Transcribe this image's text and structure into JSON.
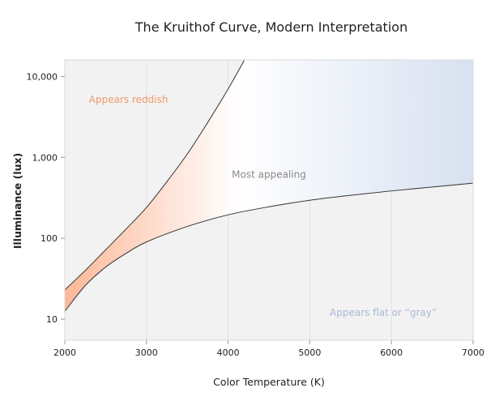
{
  "chart_data": {
    "type": "area",
    "title": "The Kruithof Curve, Modern Interpretation",
    "xlabel": "Color Temperature (K)",
    "ylabel": "Illuminance (lux)",
    "xlim": [
      2000,
      7000
    ],
    "ylim": [
      5.5,
      16000
    ],
    "y_scale": "log",
    "grid": "vertical",
    "x_ticks": [
      {
        "value": 2000,
        "label": "2000"
      },
      {
        "value": 3000,
        "label": "3000"
      },
      {
        "value": 4000,
        "label": "4000"
      },
      {
        "value": 5000,
        "label": "5000"
      },
      {
        "value": 6000,
        "label": "6000"
      },
      {
        "value": 7000,
        "label": "7000"
      }
    ],
    "y_ticks": [
      {
        "value": 10,
        "label": "10"
      },
      {
        "value": 100,
        "label": "100"
      },
      {
        "value": 1000,
        "label": "1,000"
      },
      {
        "value": 10000,
        "label": "10,000"
      }
    ],
    "series": [
      {
        "curve": "upper",
        "x": [
          2000,
          2250,
          2500,
          2750,
          3000,
          3250,
          3500,
          3750,
          4000,
          4200
        ],
        "y": [
          23,
          40,
          72,
          130,
          240,
          500,
          1100,
          2700,
          7000,
          16000
        ]
      },
      {
        "curve": "lower",
        "x": [
          2000,
          2250,
          2500,
          2750,
          3000,
          3500,
          4000,
          4500,
          5000,
          5500,
          6000,
          6500,
          7000
        ],
        "y": [
          12.5,
          26,
          44,
          65,
          90,
          140,
          195,
          245,
          295,
          340,
          385,
          430,
          480
        ]
      }
    ],
    "annotations": [
      {
        "text": "Appears reddish",
        "x": 2780,
        "y": 4700,
        "color": "#ef9a6a"
      },
      {
        "text": "Most appealing",
        "x": 4500,
        "y": 560,
        "color": "#8a8a8a"
      },
      {
        "text": "Appears flat  or “gray”",
        "x": 5900,
        "y": 11,
        "color": "#a9b8d4"
      }
    ],
    "colors": {
      "background_region": "#f2f2f2",
      "warm": "#fcb898",
      "neutral": "#ffffff",
      "cool": "#d8e1f1",
      "curve": "#333333",
      "grid": "#e2e2e2"
    }
  }
}
